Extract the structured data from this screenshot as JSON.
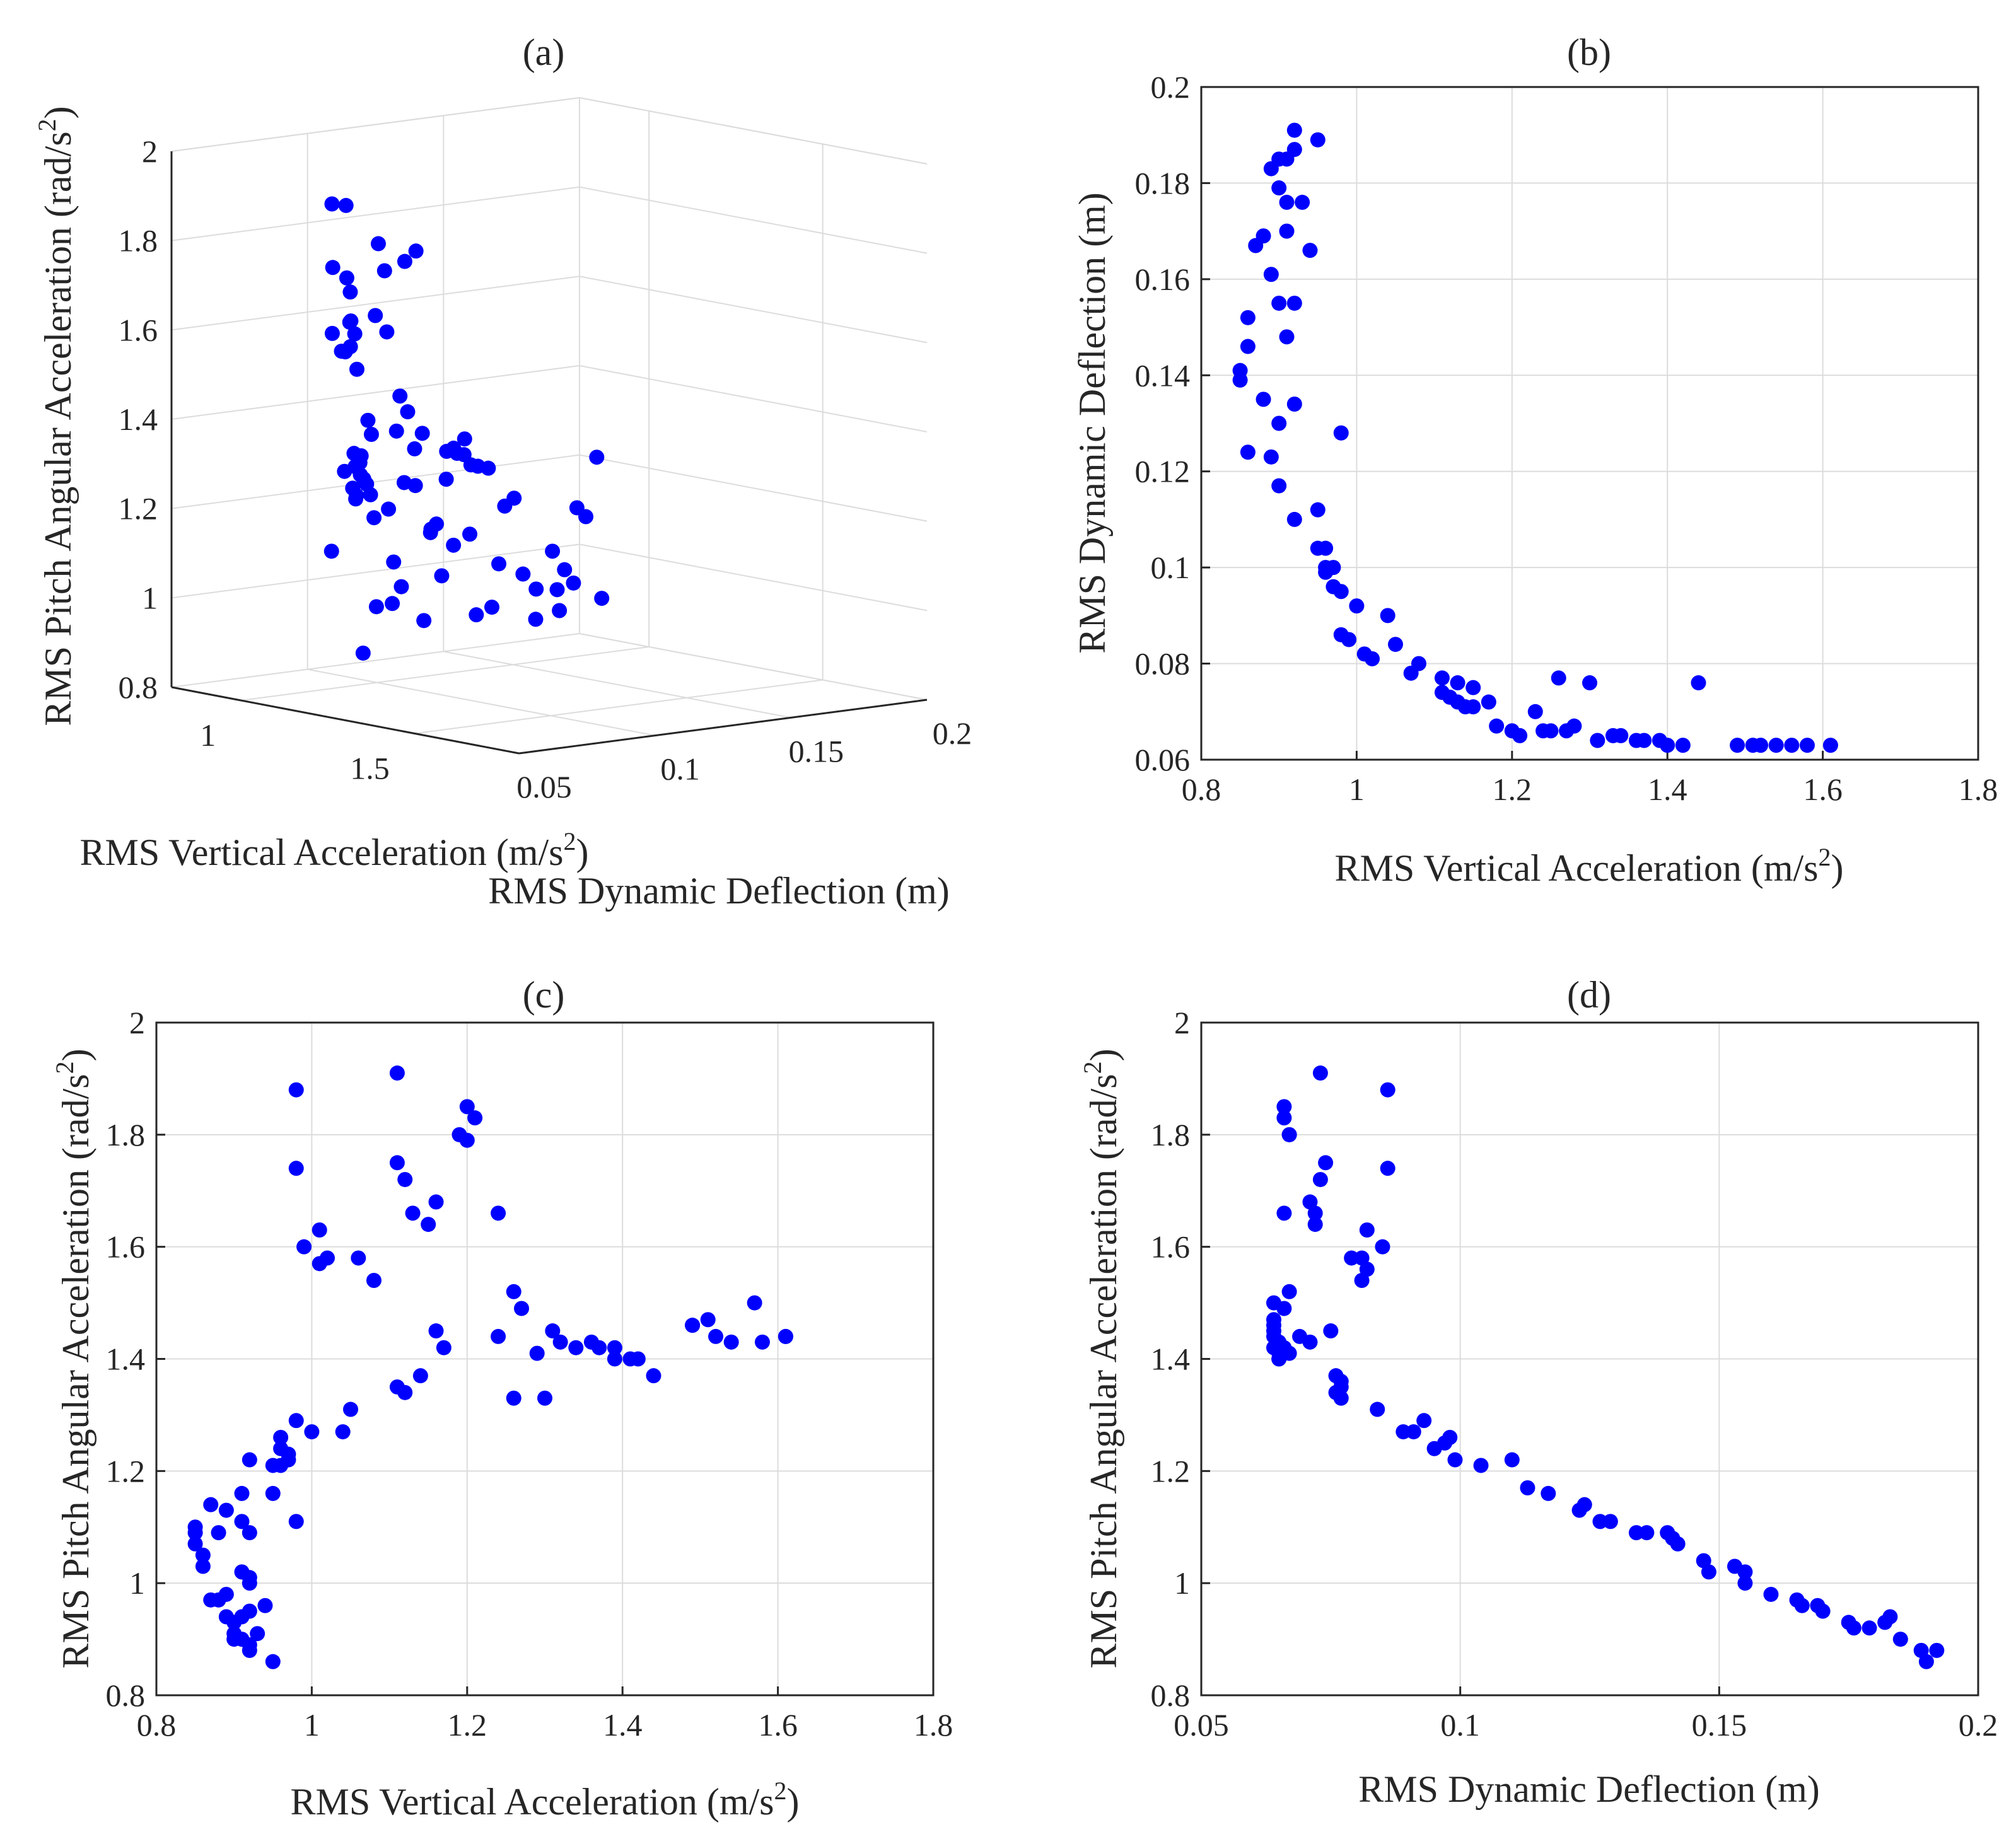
{
  "colors": {
    "marker": "#0000ff",
    "axis": "#262626",
    "grid": "#dcdcdc"
  },
  "chart_data": [
    {
      "id": "a",
      "type": "scatter3d",
      "title": "(a)",
      "xlabel": "RMS Vertical Acceleration (m/s",
      "xlabel_sup": "2",
      "xlabel_end": ")",
      "ylabel": "RMS Dynamic Deflection (m)",
      "zlabel": "RMS Pitch Angular Acceleration (rad/s",
      "zlabel_sup": "2",
      "zlabel_end": ")",
      "xlim": [
        0.8,
        1.8
      ],
      "ylim": [
        0.05,
        0.2
      ],
      "zlim": [
        0.8,
        2.0
      ],
      "xticks": [
        "1",
        "1.5"
      ],
      "xtick_values": [
        1.0,
        1.5
      ],
      "yticks": [
        "0.05",
        "0.1",
        "0.15",
        "0.2"
      ],
      "ytick_values": [
        0.05,
        0.1,
        0.15,
        0.2
      ],
      "zticks": [
        "0.8",
        "1",
        "1.2",
        "1.4",
        "1.6",
        "1.8",
        "2"
      ],
      "ztick_values": [
        0.8,
        1.0,
        1.2,
        1.4,
        1.6,
        1.8,
        2.0
      ],
      "grid": true
    },
    {
      "id": "b",
      "type": "scatter",
      "title": "(b)",
      "xlabel": "RMS Vertical Acceleration (m/s",
      "xlabel_sup": "2",
      "xlabel_end": ")",
      "ylabel": "RMS Dynamic Deflection (m)",
      "xlim": [
        0.8,
        1.8
      ],
      "ylim": [
        0.06,
        0.2
      ],
      "xticks": [
        "0.8",
        "1",
        "1.2",
        "1.4",
        "1.6",
        "1.8"
      ],
      "xtick_values": [
        0.8,
        1.0,
        1.2,
        1.4,
        1.6,
        1.8
      ],
      "yticks": [
        "0.06",
        "0.08",
        "0.1",
        "0.12",
        "0.14",
        "0.16",
        "0.18",
        "0.2"
      ],
      "ytick_values": [
        0.06,
        0.08,
        0.1,
        0.12,
        0.14,
        0.16,
        0.18,
        0.2
      ],
      "grid": true,
      "points": [
        [
          0.92,
          0.191
        ],
        [
          0.95,
          0.189
        ],
        [
          0.92,
          0.187
        ],
        [
          0.9,
          0.185
        ],
        [
          0.89,
          0.183
        ],
        [
          0.91,
          0.185
        ],
        [
          0.9,
          0.179
        ],
        [
          0.93,
          0.176
        ],
        [
          0.91,
          0.176
        ],
        [
          0.94,
          0.166
        ],
        [
          0.91,
          0.17
        ],
        [
          0.88,
          0.169
        ],
        [
          0.87,
          0.167
        ],
        [
          0.89,
          0.161
        ],
        [
          0.9,
          0.155
        ],
        [
          0.92,
          0.155
        ],
        [
          0.86,
          0.152
        ],
        [
          0.91,
          0.148
        ],
        [
          0.86,
          0.146
        ],
        [
          0.85,
          0.141
        ],
        [
          0.85,
          0.139
        ],
        [
          0.88,
          0.135
        ],
        [
          0.92,
          0.134
        ],
        [
          0.9,
          0.13
        ],
        [
          0.98,
          0.128
        ],
        [
          0.86,
          0.124
        ],
        [
          0.89,
          0.123
        ],
        [
          0.9,
          0.117
        ],
        [
          0.95,
          0.112
        ],
        [
          0.92,
          0.11
        ],
        [
          0.95,
          0.104
        ],
        [
          0.96,
          0.104
        ],
        [
          0.96,
          0.1
        ],
        [
          0.97,
          0.1
        ],
        [
          0.96,
          0.099
        ],
        [
          0.97,
          0.096
        ],
        [
          0.98,
          0.095
        ],
        [
          1.0,
          0.092
        ],
        [
          1.04,
          0.09
        ],
        [
          0.98,
          0.086
        ],
        [
          0.99,
          0.085
        ],
        [
          1.05,
          0.084
        ],
        [
          1.01,
          0.082
        ],
        [
          1.02,
          0.081
        ],
        [
          1.08,
          0.08
        ],
        [
          1.07,
          0.078
        ],
        [
          1.11,
          0.077
        ],
        [
          1.13,
          0.076
        ],
        [
          1.15,
          0.075
        ],
        [
          1.11,
          0.074
        ],
        [
          1.12,
          0.073
        ],
        [
          1.13,
          0.072
        ],
        [
          1.17,
          0.072
        ],
        [
          1.14,
          0.071
        ],
        [
          1.15,
          0.071
        ],
        [
          1.26,
          0.077
        ],
        [
          1.3,
          0.076
        ],
        [
          1.44,
          0.076
        ],
        [
          1.23,
          0.07
        ],
        [
          1.18,
          0.067
        ],
        [
          1.2,
          0.066
        ],
        [
          1.21,
          0.065
        ],
        [
          1.25,
          0.066
        ],
        [
          1.27,
          0.066
        ],
        [
          1.28,
          0.067
        ],
        [
          1.24,
          0.066
        ],
        [
          1.31,
          0.064
        ],
        [
          1.33,
          0.065
        ],
        [
          1.34,
          0.065
        ],
        [
          1.36,
          0.064
        ],
        [
          1.37,
          0.064
        ],
        [
          1.39,
          0.064
        ],
        [
          1.4,
          0.063
        ],
        [
          1.42,
          0.063
        ],
        [
          1.49,
          0.063
        ],
        [
          1.51,
          0.063
        ],
        [
          1.52,
          0.063
        ],
        [
          1.54,
          0.063
        ],
        [
          1.56,
          0.063
        ],
        [
          1.58,
          0.063
        ],
        [
          1.61,
          0.063
        ]
      ]
    },
    {
      "id": "c",
      "type": "scatter",
      "title": "(c)",
      "xlabel": "RMS Vertical Acceleration (m/s",
      "xlabel_sup": "2",
      "xlabel_end": ")",
      "ylabel": "RMS Pitch Angular Acceleration (rad/s",
      "ylabel_sup": "2",
      "ylabel_end": ")",
      "xlim": [
        0.8,
        1.8
      ],
      "ylim": [
        0.8,
        2.0
      ],
      "xticks": [
        "0.8",
        "1",
        "1.2",
        "1.4",
        "1.6",
        "1.8"
      ],
      "xtick_values": [
        0.8,
        1.0,
        1.2,
        1.4,
        1.6,
        1.8
      ],
      "yticks": [
        "0.8",
        "1",
        "1.2",
        "1.4",
        "1.6",
        "1.8",
        "2"
      ],
      "ytick_values": [
        0.8,
        1.0,
        1.2,
        1.4,
        1.6,
        1.8,
        2.0
      ],
      "grid": true,
      "points": [
        [
          0.98,
          1.88
        ],
        [
          1.11,
          1.91
        ],
        [
          1.2,
          1.85
        ],
        [
          1.21,
          1.83
        ],
        [
          1.19,
          1.8
        ],
        [
          1.2,
          1.79
        ],
        [
          0.98,
          1.74
        ],
        [
          1.11,
          1.75
        ],
        [
          1.12,
          1.72
        ],
        [
          1.13,
          1.66
        ],
        [
          1.16,
          1.68
        ],
        [
          1.15,
          1.64
        ],
        [
          1.24,
          1.66
        ],
        [
          0.99,
          1.6
        ],
        [
          1.01,
          1.63
        ],
        [
          1.01,
          1.57
        ],
        [
          1.02,
          1.58
        ],
        [
          1.06,
          1.58
        ],
        [
          1.08,
          1.54
        ],
        [
          1.26,
          1.52
        ],
        [
          1.27,
          1.49
        ],
        [
          1.49,
          1.46
        ],
        [
          1.49,
          1.46
        ],
        [
          1.51,
          1.47
        ],
        [
          1.57,
          1.5
        ],
        [
          1.16,
          1.45
        ],
        [
          1.17,
          1.42
        ],
        [
          1.24,
          1.44
        ],
        [
          1.31,
          1.45
        ],
        [
          1.32,
          1.43
        ],
        [
          1.34,
          1.42
        ],
        [
          1.36,
          1.43
        ],
        [
          1.37,
          1.42
        ],
        [
          1.39,
          1.42
        ],
        [
          1.39,
          1.4
        ],
        [
          1.41,
          1.4
        ],
        [
          1.42,
          1.4
        ],
        [
          1.44,
          1.37
        ],
        [
          1.52,
          1.44
        ],
        [
          1.54,
          1.43
        ],
        [
          1.58,
          1.43
        ],
        [
          1.61,
          1.44
        ],
        [
          1.61,
          1.44
        ],
        [
          1.29,
          1.41
        ],
        [
          1.26,
          1.33
        ],
        [
          1.3,
          1.33
        ],
        [
          1.11,
          1.35
        ],
        [
          1.12,
          1.34
        ],
        [
          1.14,
          1.37
        ],
        [
          1.05,
          1.31
        ],
        [
          1.04,
          1.27
        ],
        [
          1.0,
          1.27
        ],
        [
          0.98,
          1.29
        ],
        [
          0.96,
          1.26
        ],
        [
          0.96,
          1.24
        ],
        [
          0.97,
          1.23
        ],
        [
          0.97,
          1.22
        ],
        [
          0.96,
          1.21
        ],
        [
          0.95,
          1.21
        ],
        [
          0.92,
          1.22
        ],
        [
          0.95,
          1.16
        ],
        [
          0.98,
          1.11
        ],
        [
          0.91,
          1.16
        ],
        [
          0.92,
          1.09
        ],
        [
          0.87,
          1.14
        ],
        [
          0.89,
          1.13
        ],
        [
          0.85,
          1.1
        ],
        [
          0.85,
          1.09
        ],
        [
          0.85,
          1.07
        ],
        [
          0.91,
          1.11
        ],
        [
          0.88,
          1.09
        ],
        [
          0.86,
          1.05
        ],
        [
          0.86,
          1.03
        ],
        [
          0.91,
          1.02
        ],
        [
          0.92,
          1.01
        ],
        [
          0.92,
          1.0
        ],
        [
          0.88,
          0.97
        ],
        [
          0.89,
          0.98
        ],
        [
          0.87,
          0.97
        ],
        [
          0.94,
          0.96
        ],
        [
          0.89,
          0.94
        ],
        [
          0.91,
          0.94
        ],
        [
          0.92,
          0.95
        ],
        [
          0.9,
          0.93
        ],
        [
          0.9,
          0.91
        ],
        [
          0.9,
          0.9
        ],
        [
          0.91,
          0.9
        ],
        [
          0.93,
          0.91
        ],
        [
          0.92,
          0.89
        ],
        [
          0.92,
          0.88
        ],
        [
          0.95,
          0.86
        ]
      ]
    },
    {
      "id": "d",
      "type": "scatter",
      "title": "(d)",
      "xlabel": "RMS Dynamic Deflection (m)",
      "ylabel": "RMS Pitch Angular Acceleration (rad/s",
      "ylabel_sup": "2",
      "ylabel_end": ")",
      "xlim": [
        0.05,
        0.2
      ],
      "ylim": [
        0.8,
        2.0
      ],
      "xticks": [
        "0.05",
        "0.1",
        "0.15",
        "0.2"
      ],
      "xtick_values": [
        0.05,
        0.1,
        0.15,
        0.2
      ],
      "yticks": [
        "0.8",
        "1",
        "1.2",
        "1.4",
        "1.6",
        "1.8",
        "2"
      ],
      "ytick_values": [
        0.8,
        1.0,
        1.2,
        1.4,
        1.6,
        1.8,
        2.0
      ],
      "grid": true,
      "points": [
        [
          0.073,
          1.91
        ],
        [
          0.086,
          1.88
        ],
        [
          0.066,
          1.85
        ],
        [
          0.066,
          1.83
        ],
        [
          0.067,
          1.8
        ],
        [
          0.067,
          1.8
        ],
        [
          0.074,
          1.75
        ],
        [
          0.086,
          1.74
        ],
        [
          0.073,
          1.72
        ],
        [
          0.071,
          1.68
        ],
        [
          0.072,
          1.66
        ],
        [
          0.066,
          1.66
        ],
        [
          0.072,
          1.64
        ],
        [
          0.082,
          1.63
        ],
        [
          0.081,
          1.58
        ],
        [
          0.079,
          1.58
        ],
        [
          0.082,
          1.56
        ],
        [
          0.081,
          1.54
        ],
        [
          0.085,
          1.6
        ],
        [
          0.067,
          1.52
        ],
        [
          0.064,
          1.5
        ],
        [
          0.066,
          1.49
        ],
        [
          0.064,
          1.47
        ],
        [
          0.064,
          1.46
        ],
        [
          0.064,
          1.45
        ],
        [
          0.064,
          1.44
        ],
        [
          0.065,
          1.43
        ],
        [
          0.064,
          1.42
        ],
        [
          0.065,
          1.41
        ],
        [
          0.066,
          1.42
        ],
        [
          0.065,
          1.4
        ],
        [
          0.065,
          1.4
        ],
        [
          0.067,
          1.41
        ],
        [
          0.069,
          1.44
        ],
        [
          0.071,
          1.43
        ],
        [
          0.075,
          1.45
        ],
        [
          0.076,
          1.37
        ],
        [
          0.077,
          1.36
        ],
        [
          0.077,
          1.35
        ],
        [
          0.076,
          1.34
        ],
        [
          0.077,
          1.33
        ],
        [
          0.084,
          1.31
        ],
        [
          0.093,
          1.29
        ],
        [
          0.091,
          1.27
        ],
        [
          0.089,
          1.27
        ],
        [
          0.095,
          1.24
        ],
        [
          0.097,
          1.25
        ],
        [
          0.098,
          1.26
        ],
        [
          0.099,
          1.22
        ],
        [
          0.104,
          1.21
        ],
        [
          0.11,
          1.22
        ],
        [
          0.113,
          1.17
        ],
        [
          0.117,
          1.16
        ],
        [
          0.123,
          1.13
        ],
        [
          0.124,
          1.14
        ],
        [
          0.127,
          1.11
        ],
        [
          0.129,
          1.11
        ],
        [
          0.134,
          1.09
        ],
        [
          0.136,
          1.09
        ],
        [
          0.14,
          1.09
        ],
        [
          0.141,
          1.08
        ],
        [
          0.142,
          1.07
        ],
        [
          0.148,
          1.02
        ],
        [
          0.147,
          1.04
        ],
        [
          0.153,
          1.03
        ],
        [
          0.155,
          1.02
        ],
        [
          0.155,
          1.0
        ],
        [
          0.16,
          0.98
        ],
        [
          0.165,
          0.97
        ],
        [
          0.166,
          0.96
        ],
        [
          0.169,
          0.96
        ],
        [
          0.17,
          0.95
        ],
        [
          0.175,
          0.93
        ],
        [
          0.176,
          0.92
        ],
        [
          0.179,
          0.92
        ],
        [
          0.182,
          0.93
        ],
        [
          0.183,
          0.94
        ],
        [
          0.185,
          0.9
        ],
        [
          0.189,
          0.88
        ],
        [
          0.19,
          0.86
        ],
        [
          0.192,
          0.88
        ]
      ]
    }
  ]
}
